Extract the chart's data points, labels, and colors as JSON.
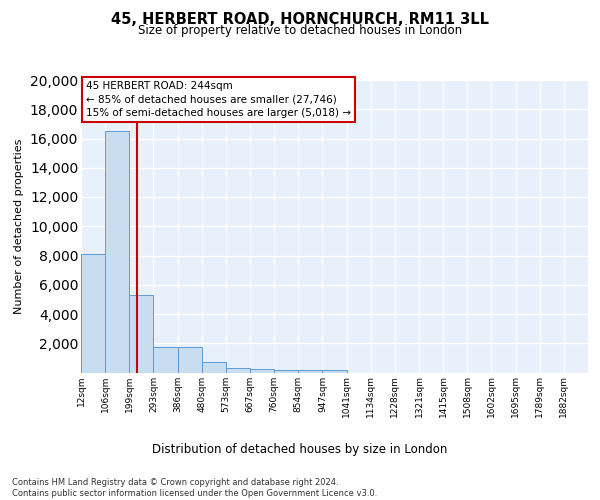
{
  "title": "45, HERBERT ROAD, HORNCHURCH, RM11 3LL",
  "subtitle": "Size of property relative to detached houses in London",
  "xlabel": "Distribution of detached houses by size in London",
  "ylabel": "Number of detached properties",
  "bin_labels": [
    "12sqm",
    "106sqm",
    "199sqm",
    "293sqm",
    "386sqm",
    "480sqm",
    "573sqm",
    "667sqm",
    "760sqm",
    "854sqm",
    "947sqm",
    "1041sqm",
    "1134sqm",
    "1228sqm",
    "1321sqm",
    "1415sqm",
    "1508sqm",
    "1602sqm",
    "1695sqm",
    "1789sqm",
    "1882sqm"
  ],
  "bar_heights": [
    8100,
    16500,
    5300,
    1750,
    1750,
    700,
    300,
    230,
    200,
    170,
    150,
    0,
    0,
    0,
    0,
    0,
    0,
    0,
    0,
    0,
    0
  ],
  "bar_color": "#c9ddf0",
  "bar_edge_color": "#5b9bd5",
  "red_line_x": 2.33,
  "annotation_text": "45 HERBERT ROAD: 244sqm\n← 85% of detached houses are smaller (27,746)\n15% of semi-detached houses are larger (5,018) →",
  "annotation_box_color": "#ffffff",
  "annotation_box_edge": "#cc0000",
  "footer": "Contains HM Land Registry data © Crown copyright and database right 2024.\nContains public sector information licensed under the Open Government Licence v3.0.",
  "ylim": [
    0,
    20000
  ],
  "yticks": [
    0,
    2000,
    4000,
    6000,
    8000,
    10000,
    12000,
    14000,
    16000,
    18000,
    20000
  ],
  "bg_color": "#e8f0fb",
  "grid_color": "#ffffff"
}
